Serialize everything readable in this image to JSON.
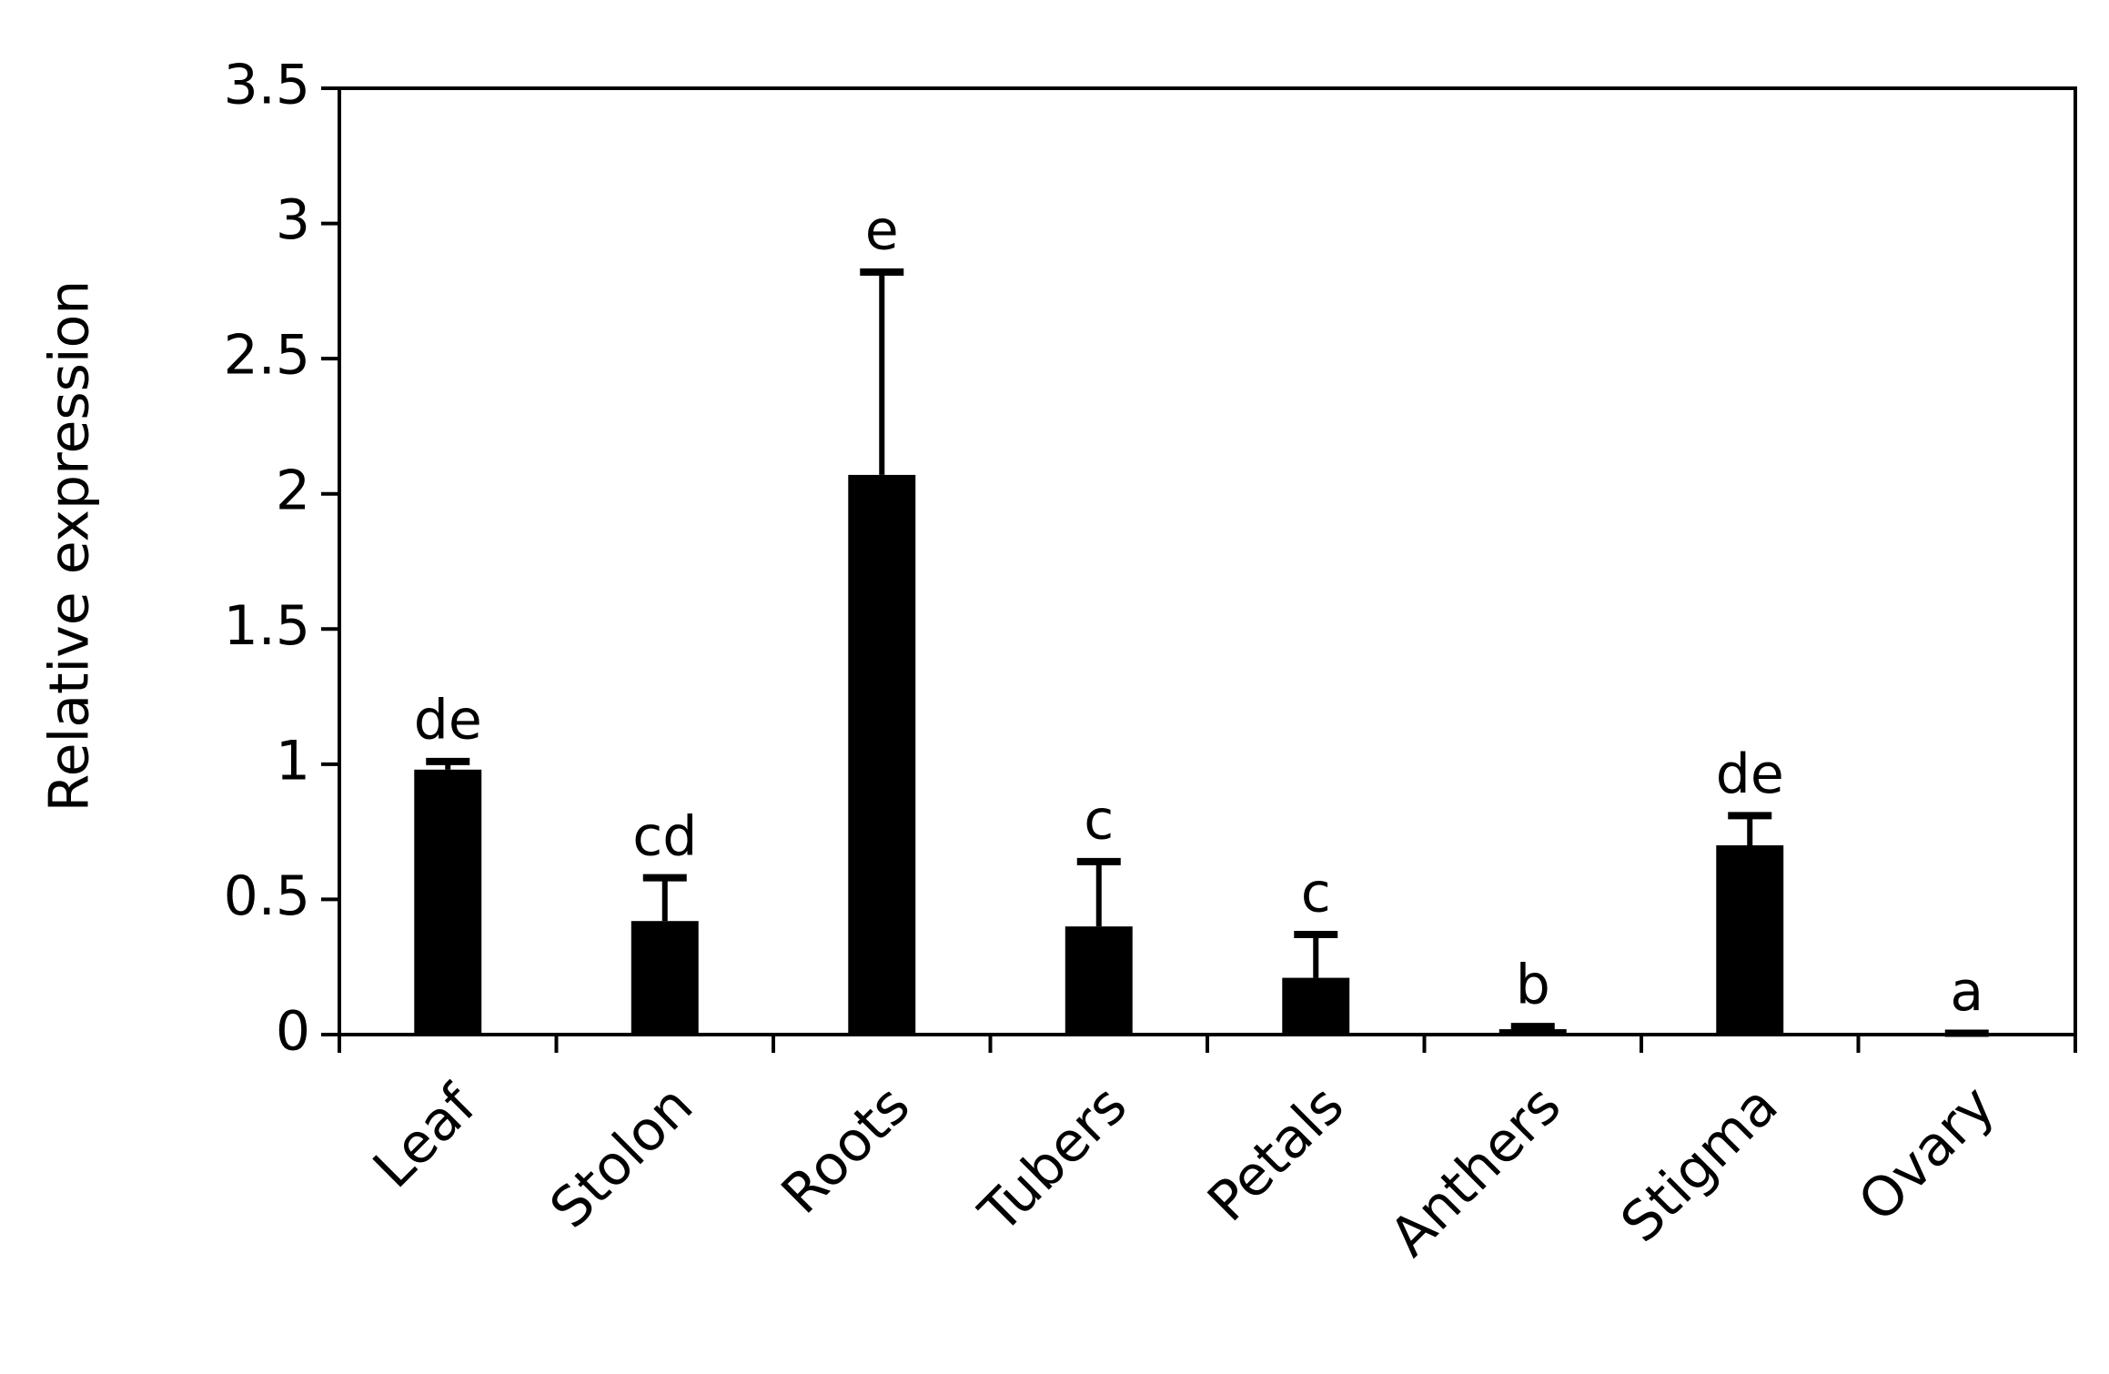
{
  "chart_data": {
    "type": "bar",
    "y_label": "Relative expression",
    "categories": [
      "Leaf",
      "Stolon",
      "Roots",
      "Tubers",
      "Petals",
      "Anthers",
      "Stigma",
      "Ovary"
    ],
    "values": [
      0.98,
      0.42,
      2.07,
      0.4,
      0.21,
      0.02,
      0.7,
      0.005
    ],
    "errors": [
      0.03,
      0.16,
      0.75,
      0.24,
      0.16,
      0.01,
      0.11,
      0
    ],
    "labels": [
      "de",
      "cd",
      "e",
      "c",
      "c",
      "b",
      "de",
      "a"
    ],
    "color": "#000000",
    "ylim": [
      0,
      3.5
    ],
    "yticks": [
      0,
      0.5,
      1,
      1.5,
      2,
      2.5,
      3,
      3.5
    ],
    "grid": false
  }
}
